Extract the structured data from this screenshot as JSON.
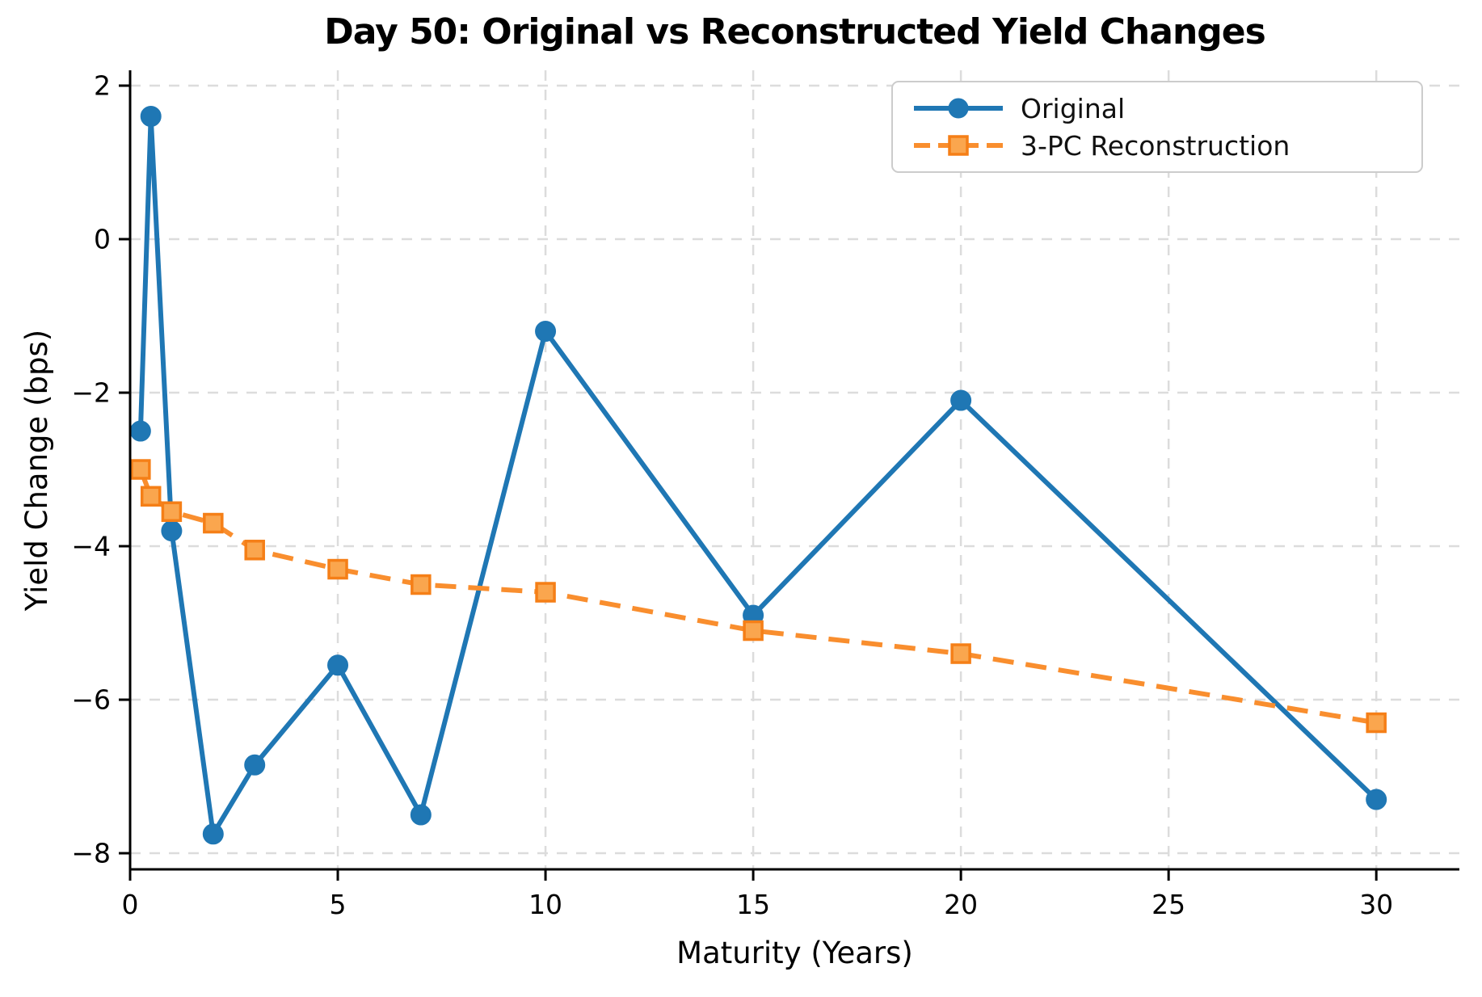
{
  "chart_data": {
    "type": "line",
    "title": "Day 50: Original vs Reconstructed Yield Changes",
    "xlabel": "Maturity (Years)",
    "ylabel": "Yield Change (bps)",
    "x": [
      0.25,
      0.5,
      1,
      2,
      3,
      5,
      7,
      10,
      15,
      20,
      30
    ],
    "series": [
      {
        "name": "Original",
        "marker": "circle",
        "linestyle": "solid",
        "color": "#1f77b4",
        "marker_face": "#1f77b4",
        "marker_edge": "#1f77b4",
        "values": [
          -2.5,
          1.6,
          -3.8,
          -7.75,
          -6.85,
          -5.55,
          -7.5,
          -1.2,
          -4.9,
          -2.1,
          -7.3
        ]
      },
      {
        "name": "3-PC Reconstruction",
        "marker": "square",
        "linestyle": "dashed",
        "color": "#f98e2e",
        "marker_face": "#faa64e",
        "marker_edge": "#f57f17",
        "values": [
          -3.0,
          -3.35,
          -3.55,
          -3.7,
          -4.05,
          -4.3,
          -4.5,
          -4.6,
          -5.1,
          -5.4,
          -6.3
        ]
      }
    ],
    "xticks": [
      0,
      5,
      10,
      15,
      20,
      25,
      30
    ],
    "xtick_labels": [
      "0",
      "5",
      "10",
      "15",
      "20",
      "25",
      "30"
    ],
    "yticks": [
      2,
      0,
      -2,
      -4,
      -6,
      -8
    ],
    "ytick_labels": [
      "2",
      "0",
      "−2",
      "−4",
      "−6",
      "−8"
    ],
    "xlim": [
      0,
      32
    ],
    "ylim": [
      -8.21,
      2.2
    ],
    "grid": true,
    "grid_color": "#dcdcdc",
    "legend_position": "upper right",
    "text_color": "#000000"
  }
}
